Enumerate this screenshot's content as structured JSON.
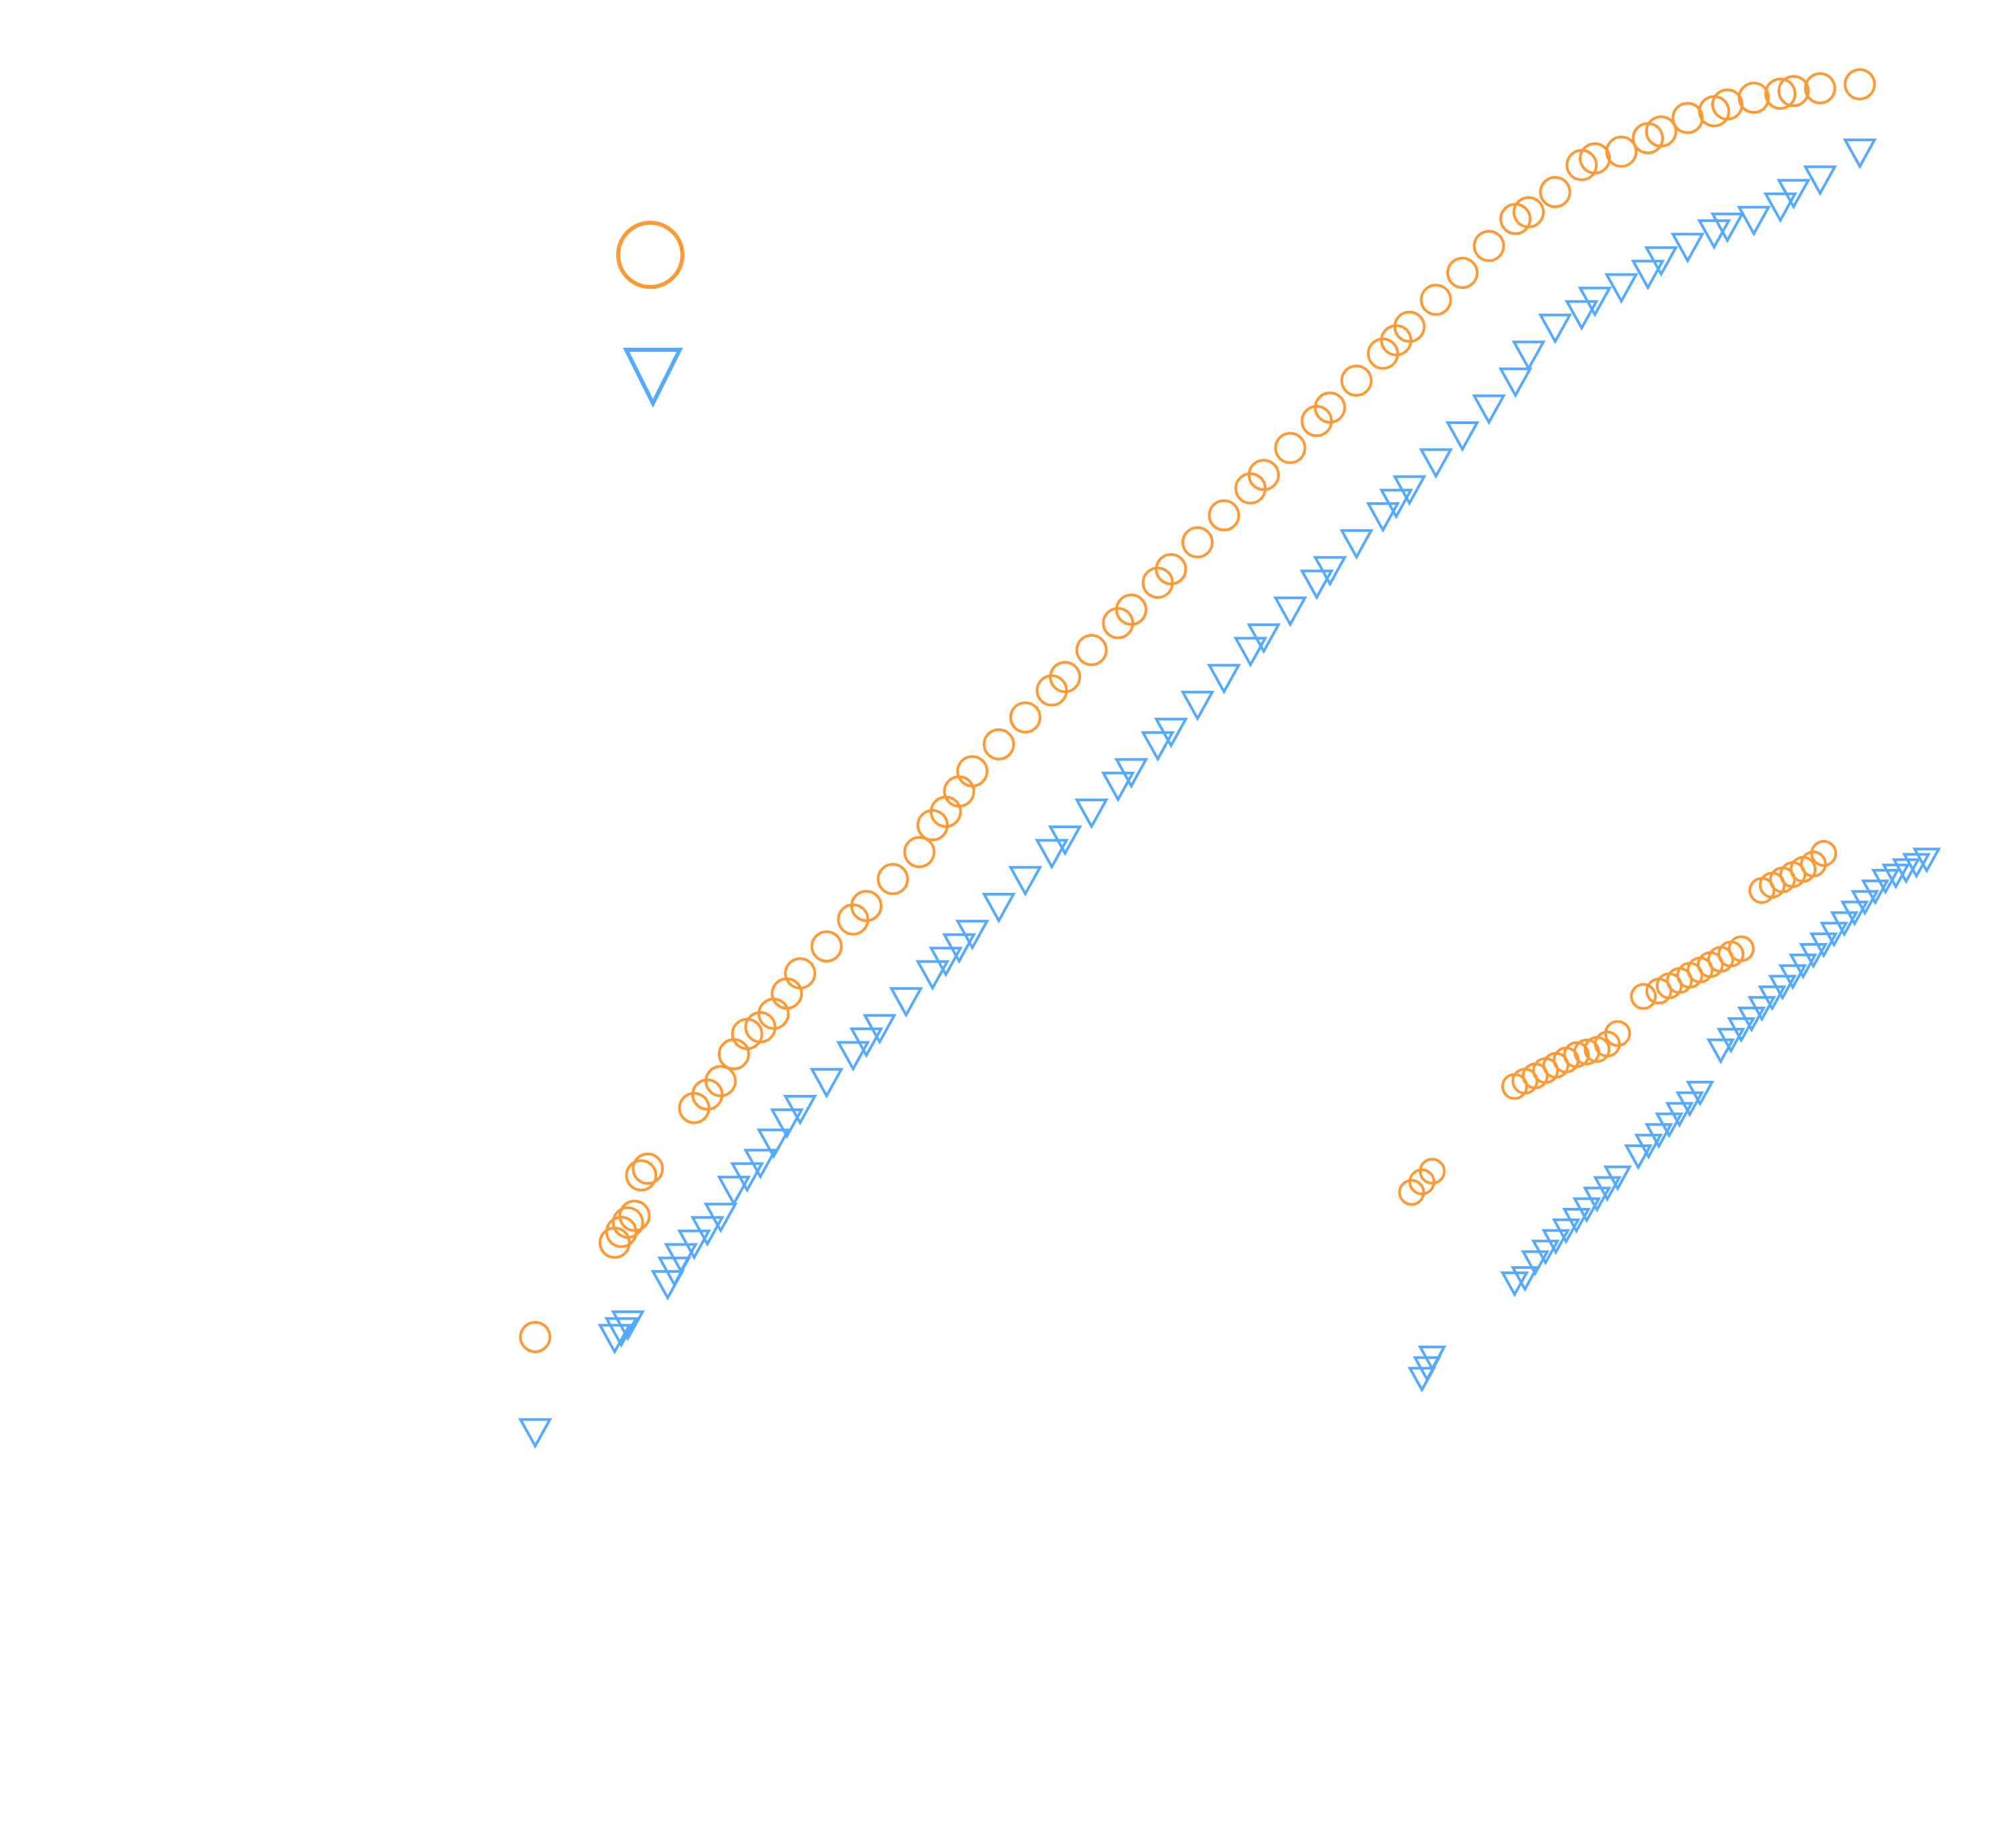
{
  "chart_data": [
    {
      "type": "scatter",
      "title": "",
      "xlabel": "",
      "ylabel": "",
      "xlim": [
        0,
        100
      ],
      "ylim": [
        0,
        100
      ],
      "grid": false,
      "legend": {
        "placement": "top-left"
      },
      "series": [
        {
          "marker": "circle",
          "color": "#FF9933",
          "x": [
            0,
            6,
            6.5,
            7,
            7.5,
            8,
            8.5,
            12,
            13,
            14,
            15,
            16,
            17,
            18,
            19,
            20,
            22,
            24,
            25,
            27,
            29,
            30,
            31,
            32,
            33,
            35,
            37,
            39,
            40,
            42,
            44,
            45,
            47,
            48,
            50,
            52,
            54,
            55,
            57,
            59,
            60,
            62,
            64,
            65,
            66,
            68,
            70,
            72,
            74,
            75,
            77,
            79,
            80,
            82,
            84,
            85,
            87,
            89,
            90,
            92,
            94,
            95,
            97,
            100
          ],
          "y": [
            7,
            14,
            14.8,
            15.5,
            16,
            19,
            19.5,
            24,
            25,
            26,
            28,
            29.5,
            30,
            31,
            32.5,
            34,
            36,
            38,
            39,
            41,
            43,
            45,
            46,
            47.5,
            49,
            51,
            53,
            55,
            56,
            58,
            60,
            61,
            63,
            64,
            66,
            68,
            70,
            71,
            73,
            75,
            76,
            78,
            80,
            81,
            82,
            84,
            86,
            88,
            90,
            90.5,
            92,
            94,
            94.5,
            95,
            96,
            96.5,
            97.5,
            98,
            98.5,
            99,
            99.3,
            99.5,
            99.7,
            100
          ]
        },
        {
          "marker": "triangle-down",
          "color": "#55AAFF",
          "x": [
            0,
            6,
            6.5,
            7,
            10,
            10.5,
            11,
            12,
            13,
            14,
            15,
            16,
            17,
            18,
            19,
            20,
            22,
            24,
            25,
            26,
            28,
            30,
            31,
            32,
            33,
            35,
            37,
            39,
            40,
            42,
            44,
            45,
            47,
            48,
            50,
            52,
            54,
            55,
            57,
            59,
            60,
            62,
            64,
            65,
            66,
            68,
            70,
            72,
            74,
            75,
            77,
            79,
            80,
            82,
            84,
            85,
            87,
            89,
            90,
            92,
            94,
            95,
            97,
            100
          ],
          "y": [
            0,
            7,
            7.5,
            8,
            11,
            12,
            13,
            14,
            15,
            16,
            18,
            19,
            20,
            21.5,
            23,
            24,
            26,
            28,
            29,
            30,
            32,
            34,
            35,
            36,
            37,
            39,
            41,
            43,
            44,
            46,
            48,
            49,
            51,
            52,
            54,
            56,
            58,
            59,
            61,
            63,
            64,
            66,
            68,
            69,
            70,
            72,
            74,
            76,
            78,
            80,
            82,
            83,
            84,
            85,
            86,
            87,
            88,
            89,
            89.5,
            90,
            91,
            92,
            93,
            95
          ]
        }
      ]
    },
    {
      "type": "scatter",
      "title": "",
      "xlabel": "",
      "ylabel": "",
      "xlim": [
        0,
        100
      ],
      "ylim": [
        0,
        100
      ],
      "grid": false,
      "series": [
        {
          "marker": "circle",
          "color": "#FF9933",
          "x": [
            0,
            2,
            4,
            20,
            22,
            24,
            26,
            28,
            30,
            32,
            34,
            36,
            38,
            40,
            45,
            48,
            50,
            52,
            54,
            56,
            58,
            60,
            62,
            64,
            68,
            70,
            72,
            74,
            76,
            78,
            80
          ],
          "y": [
            35,
            37,
            39,
            55,
            56,
            57,
            58,
            59,
            60,
            61,
            61.5,
            62,
            63,
            65,
            72,
            73,
            74,
            75,
            76,
            77,
            78,
            79,
            80,
            81,
            92,
            93,
            94,
            95,
            96,
            97,
            99
          ]
        },
        {
          "marker": "triangle-down",
          "color": "#55AAFF",
          "x": [
            2,
            3,
            4,
            20,
            22,
            24,
            26,
            28,
            30,
            32,
            34,
            36,
            38,
            40,
            44,
            46,
            48,
            50,
            52,
            54,
            56,
            60,
            62,
            64,
            66,
            68,
            70,
            72,
            74,
            76,
            78,
            80,
            82,
            84,
            86,
            88,
            90,
            92,
            94,
            96,
            98,
            100
          ],
          "y": [
            0,
            2,
            4,
            18,
            19,
            22,
            24,
            26,
            28,
            30,
            32,
            34,
            36,
            38,
            42,
            44,
            46,
            48,
            50,
            52,
            54,
            62,
            64,
            66,
            68,
            70,
            72,
            74,
            76,
            78,
            80,
            82,
            84,
            86,
            88,
            90,
            92,
            94,
            95,
            96,
            97,
            98
          ]
        }
      ]
    }
  ]
}
